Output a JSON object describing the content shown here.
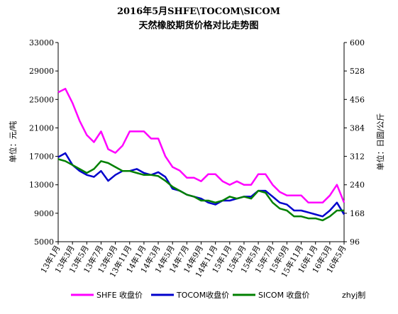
{
  "chart_data": {
    "type": "line",
    "title": "2016年5月SHFE\\TOCOM\\SICOM",
    "subtitle": "天然橡胶期货价格对比走势图",
    "y_label": "单位：元/吨",
    "y2_label": "单位：日圆/公斤",
    "credit": "zhyj制",
    "categories": [
      "13年1月",
      null,
      "13年3月",
      null,
      "13年5月",
      null,
      "13年7月",
      null,
      "13年9月",
      null,
      "13年11月",
      null,
      "14年1月",
      null,
      "14年3月",
      null,
      "14年5月",
      null,
      "14年7月",
      null,
      "14年9月",
      null,
      "14年11月",
      null,
      "15年1月",
      null,
      "15年3月",
      null,
      "15年5月",
      null,
      "15年7月",
      null,
      "15年9月",
      null,
      "15年11月",
      null,
      "16年1月",
      null,
      "16年3月",
      null,
      "16年5月"
    ],
    "ylim": [
      5000,
      33000
    ],
    "yticks": [
      5000,
      9000,
      13000,
      17000,
      21000,
      25000,
      29000,
      33000
    ],
    "y2lim": [
      96,
      600
    ],
    "y2ticks": [
      96,
      168,
      240,
      312,
      384,
      456,
      528,
      600
    ],
    "series": [
      {
        "name": "SHFE 收盘价",
        "color": "#ff00ff",
        "values": [
          26000,
          26500,
          24500,
          22000,
          20000,
          19000,
          20500,
          18000,
          17500,
          18500,
          20500,
          20500,
          20500,
          19500,
          19500,
          17000,
          15500,
          15000,
          14000,
          14000,
          13500,
          14500,
          14500,
          13500,
          13000,
          13500,
          13000,
          13000,
          14500,
          14500,
          13000,
          12000,
          11500,
          11500,
          11500,
          10500,
          10500,
          10500,
          11500,
          13000,
          10500
        ]
      },
      {
        "name": "TOCOM收盘价",
        "color": "#0000cc",
        "axis": "y2",
        "values": [
          310,
          320,
          290,
          275,
          265,
          260,
          275,
          250,
          265,
          275,
          275,
          280,
          270,
          265,
          272,
          260,
          230,
          225,
          215,
          210,
          205,
          195,
          190,
          200,
          200,
          205,
          210,
          210,
          225,
          225,
          210,
          195,
          190,
          175,
          175,
          170,
          165,
          160,
          175,
          195,
          165
        ]
      },
      {
        "name": "SICOM 收盘价",
        "color": "#008000",
        "axis": "y2",
        "values": [
          305,
          300,
          290,
          280,
          270,
          280,
          300,
          295,
          285,
          275,
          275,
          270,
          265,
          265,
          262,
          250,
          235,
          225,
          215,
          210,
          200,
          200,
          195,
          200,
          210,
          205,
          210,
          205,
          225,
          220,
          195,
          180,
          175,
          160,
          160,
          155,
          155,
          150,
          160,
          175,
          175
        ]
      }
    ]
  }
}
